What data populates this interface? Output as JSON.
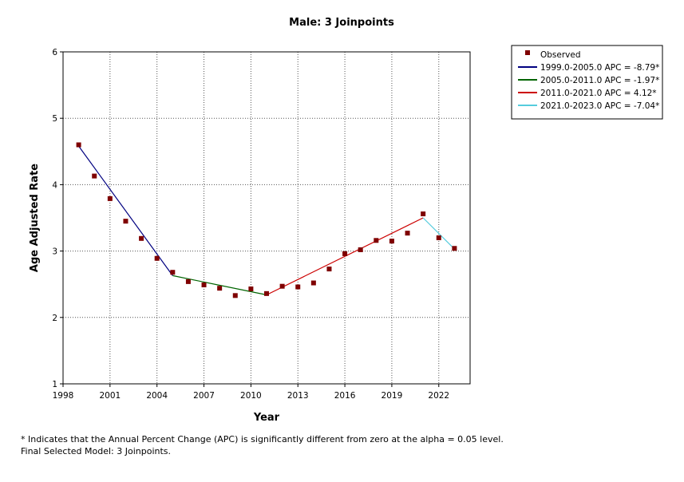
{
  "chart_data": {
    "type": "line",
    "title": "Male: 3 Joinpoints",
    "xlabel": "Year",
    "ylabel": "Age Adjusted Rate",
    "xlim": [
      1998,
      2024
    ],
    "ylim": [
      1,
      6
    ],
    "xticks": [
      1998,
      2001,
      2004,
      2007,
      2010,
      2013,
      2016,
      2019,
      2022
    ],
    "yticks": [
      1,
      2,
      3,
      4,
      5,
      6
    ],
    "grid": true,
    "legend_position": "top-right",
    "observed": {
      "name": "Observed",
      "color": "#7f0000",
      "x": [
        1999,
        2000,
        2001,
        2002,
        2003,
        2004,
        2005,
        2006,
        2007,
        2008,
        2009,
        2010,
        2011,
        2012,
        2013,
        2014,
        2015,
        2016,
        2017,
        2018,
        2019,
        2020,
        2021,
        2022,
        2023
      ],
      "y": [
        4.6,
        4.13,
        3.79,
        3.45,
        3.19,
        2.89,
        2.68,
        2.54,
        2.49,
        2.44,
        2.33,
        2.43,
        2.36,
        2.47,
        2.46,
        2.52,
        2.73,
        2.96,
        3.02,
        3.16,
        3.15,
        3.27,
        3.56,
        3.2,
        3.04
      ]
    },
    "series": [
      {
        "name": "1999.0-2005.0 APC  =  -8.79*",
        "color": "#000080",
        "x": [
          1999,
          2005
        ],
        "y": [
          4.58,
          2.63
        ]
      },
      {
        "name": "2005.0-2011.0 APC  =  -1.97*",
        "color": "#006400",
        "x": [
          2005,
          2011
        ],
        "y": [
          2.63,
          2.34
        ]
      },
      {
        "name": "2011.0-2021.0 APC  =  4.12*",
        "color": "#cc0000",
        "x": [
          2011,
          2021
        ],
        "y": [
          2.34,
          3.5
        ]
      },
      {
        "name": "2021.0-2023.0 APC  =  -7.04*",
        "color": "#55ccdd",
        "x": [
          2021,
          2023
        ],
        "y": [
          3.5,
          3.03
        ]
      }
    ]
  },
  "footnotes": {
    "line1": "* Indicates that the Annual Percent Change (APC) is significantly different from zero at the alpha = 0.05 level.",
    "line2": "Final Selected Model: 3 Joinpoints."
  }
}
